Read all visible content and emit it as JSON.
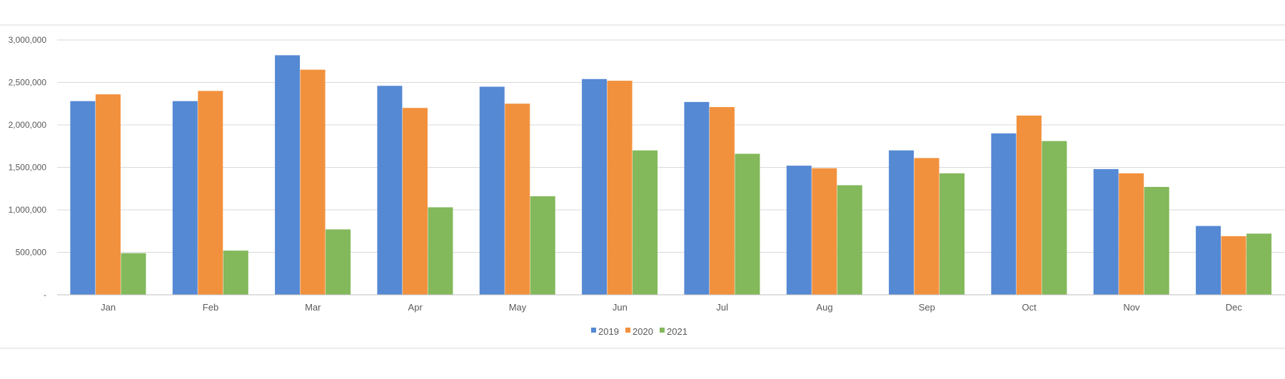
{
  "chart_data": {
    "type": "bar",
    "title": "",
    "xlabel": "",
    "ylabel": "",
    "categories": [
      "Jan",
      "Feb",
      "Mar",
      "Apr",
      "May",
      "Jun",
      "Jul",
      "Aug",
      "Sep",
      "Oct",
      "Nov",
      "Dec"
    ],
    "series": [
      {
        "name": "2019",
        "color": "#5589d4",
        "values": [
          2280000,
          2280000,
          2820000,
          2460000,
          2450000,
          2540000,
          2270000,
          1520000,
          1700000,
          1900000,
          1480000,
          810000
        ]
      },
      {
        "name": "2020",
        "color": "#f2913d",
        "values": [
          2360000,
          2400000,
          2650000,
          2200000,
          2250000,
          2520000,
          2210000,
          1490000,
          1610000,
          2110000,
          1430000,
          690000
        ]
      },
      {
        "name": "2021",
        "color": "#83b85b",
        "values": [
          490000,
          520000,
          770000,
          1030000,
          1160000,
          1700000,
          1660000,
          1290000,
          1430000,
          1810000,
          1270000,
          720000
        ]
      }
    ],
    "ylim": [
      0,
      3000000
    ],
    "yticks": [
      0,
      500000,
      1000000,
      1500000,
      2000000,
      2500000,
      3000000
    ],
    "ytick_labels": [
      "-",
      "500,000",
      "1,000,000",
      "1,500,000",
      "2,000,000",
      "2,500,000",
      "3,000,000"
    ],
    "grid": true,
    "legend_position": "bottom-center"
  }
}
